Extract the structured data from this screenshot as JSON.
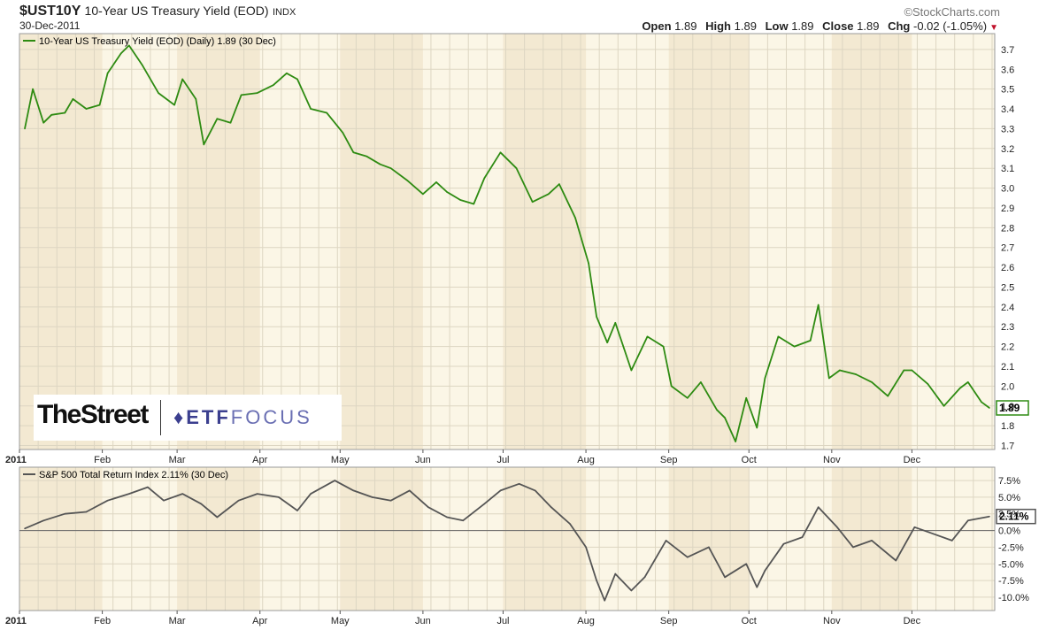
{
  "header": {
    "symbol": "$UST10Y",
    "description": "10-Year US Treasury Yield (EOD)",
    "exchange": "INDX",
    "date": "30-Dec-2011",
    "credit": "©StockCharts.com",
    "open_label": "Open",
    "open": "1.89",
    "high_label": "High",
    "high": "1.89",
    "low_label": "Low",
    "low": "1.89",
    "close_label": "Close",
    "close": "1.89",
    "chg_label": "Chg",
    "chg": "-0.02 (-1.05%)"
  },
  "logo": {
    "left": "TheStreet",
    "right_bold": "ETF",
    "right_light": "FOCUS"
  },
  "colors": {
    "yield_line": "#2e8b12",
    "spx_line": "#555555",
    "band": "#f3e9d2",
    "panel_bg": "#fbf6e6",
    "grid": "#ddd6c2"
  },
  "chart_data": [
    {
      "type": "line",
      "legend": "10-Year US Treasury Yield (EOD) (Daily) 1.89 (30 Dec)",
      "x_ticks": [
        "2011",
        "Feb",
        "Mar",
        "Apr",
        "May",
        "Jun",
        "Jul",
        "Aug",
        "Sep",
        "Oct",
        "Nov",
        "Dec"
      ],
      "ylim": [
        1.68,
        3.78
      ],
      "y_ticks": [
        "3.7",
        "3.6",
        "3.5",
        "3.4",
        "3.3",
        "3.2",
        "3.1",
        "3.0",
        "2.9",
        "2.8",
        "2.7",
        "2.6",
        "2.5",
        "2.4",
        "2.3",
        "2.2",
        "2.1",
        "2.0",
        "1.9",
        "1.8",
        "1.7"
      ],
      "last_label": "1.89",
      "series": [
        {
          "x": [
            "Jan 3",
            "Jan 6",
            "Jan 10",
            "Jan 13",
            "Jan 18",
            "Jan 21",
            "Jan 26",
            "Jan 31",
            "Feb 3",
            "Feb 8",
            "Feb 11",
            "Feb 16",
            "Feb 22",
            "Feb 28",
            "Mar 3",
            "Mar 8",
            "Mar 11",
            "Mar 16",
            "Mar 21",
            "Mar 25",
            "Mar 31",
            "Apr 6",
            "Apr 11",
            "Apr 15",
            "Apr 20",
            "Apr 26",
            "May 2",
            "May 6",
            "May 11",
            "May 16",
            "May 20",
            "May 26",
            "Jun 1",
            "Jun 6",
            "Jun 10",
            "Jun 15",
            "Jun 20",
            "Jun 24",
            "Jun 30",
            "Jul 6",
            "Jul 12",
            "Jul 18",
            "Jul 22",
            "Jul 28",
            "Aug 2",
            "Aug 5",
            "Aug 9",
            "Aug 12",
            "Aug 18",
            "Aug 24",
            "Aug 30",
            "Sep 2",
            "Sep 8",
            "Sep 13",
            "Sep 19",
            "Sep 22",
            "Sep 26",
            "Sep 30",
            "Oct 4",
            "Oct 7",
            "Oct 12",
            "Oct 18",
            "Oct 24",
            "Oct 27",
            "Oct 31",
            "Nov 4",
            "Nov 10",
            "Nov 16",
            "Nov 22",
            "Nov 28",
            "Dec 1",
            "Dec 7",
            "Dec 13",
            "Dec 19",
            "Dec 22",
            "Dec 27",
            "Dec 30"
          ],
          "y": [
            3.3,
            3.5,
            3.33,
            3.37,
            3.38,
            3.45,
            3.4,
            3.42,
            3.58,
            3.68,
            3.72,
            3.62,
            3.48,
            3.42,
            3.55,
            3.45,
            3.22,
            3.35,
            3.33,
            3.47,
            3.48,
            3.52,
            3.58,
            3.55,
            3.4,
            3.38,
            3.28,
            3.18,
            3.16,
            3.12,
            3.1,
            3.04,
            2.97,
            3.03,
            2.98,
            2.94,
            2.92,
            3.05,
            3.18,
            3.1,
            2.93,
            2.97,
            3.02,
            2.85,
            2.62,
            2.35,
            2.22,
            2.32,
            2.08,
            2.25,
            2.2,
            2.0,
            1.94,
            2.02,
            1.88,
            1.84,
            1.72,
            1.94,
            1.79,
            2.04,
            2.25,
            2.2,
            2.23,
            2.41,
            2.04,
            2.08,
            2.06,
            2.02,
            1.95,
            2.08,
            2.08,
            2.01,
            1.9,
            1.99,
            2.02,
            1.92,
            1.89
          ]
        }
      ]
    },
    {
      "type": "line",
      "legend": "S&P 500 Total Return Index 2.11% (30 Dec)",
      "ylim": [
        -12.0,
        9.5
      ],
      "y_ticks": [
        "7.5%",
        "5.0%",
        "2.5%",
        "0.0%",
        "-2.5%",
        "-5.0%",
        "-7.5%",
        "-10.0%"
      ],
      "last_label": "2.11%",
      "series": [
        {
          "x": [
            "Jan 3",
            "Jan 10",
            "Jan 18",
            "Jan 26",
            "Feb 3",
            "Feb 11",
            "Feb 18",
            "Feb 24",
            "Mar 3",
            "Mar 10",
            "Mar 16",
            "Mar 24",
            "Mar 31",
            "Apr 8",
            "Apr 15",
            "Apr 20",
            "Apr 29",
            "May 6",
            "May 13",
            "May 20",
            "May 27",
            "Jun 3",
            "Jun 10",
            "Jun 16",
            "Jun 24",
            "Jun 30",
            "Jul 7",
            "Jul 13",
            "Jul 19",
            "Jul 26",
            "Aug 1",
            "Aug 5",
            "Aug 8",
            "Aug 12",
            "Aug 18",
            "Aug 23",
            "Aug 31",
            "Sep 8",
            "Sep 16",
            "Sep 22",
            "Sep 30",
            "Oct 4",
            "Oct 7",
            "Oct 14",
            "Oct 21",
            "Oct 27",
            "Nov 3",
            "Nov 9",
            "Nov 16",
            "Nov 25",
            "Dec 2",
            "Dec 9",
            "Dec 16",
            "Dec 22",
            "Dec 30"
          ],
          "y": [
            0.3,
            1.5,
            2.5,
            2.8,
            4.5,
            5.5,
            6.5,
            4.5,
            5.5,
            4.0,
            2.0,
            4.5,
            5.5,
            5.0,
            3.0,
            5.5,
            7.5,
            6.0,
            5.0,
            4.5,
            6.0,
            3.5,
            2.0,
            1.5,
            4.0,
            6.0,
            7.0,
            6.0,
            3.5,
            1.0,
            -2.5,
            -7.5,
            -10.5,
            -6.5,
            -9.0,
            -7.0,
            -1.5,
            -4.0,
            -2.5,
            -7.0,
            -5.0,
            -8.5,
            -6.0,
            -2.0,
            -1.0,
            3.5,
            0.5,
            -2.5,
            -1.5,
            -4.5,
            0.5,
            -0.5,
            -1.5,
            1.5,
            2.11
          ]
        }
      ]
    }
  ]
}
